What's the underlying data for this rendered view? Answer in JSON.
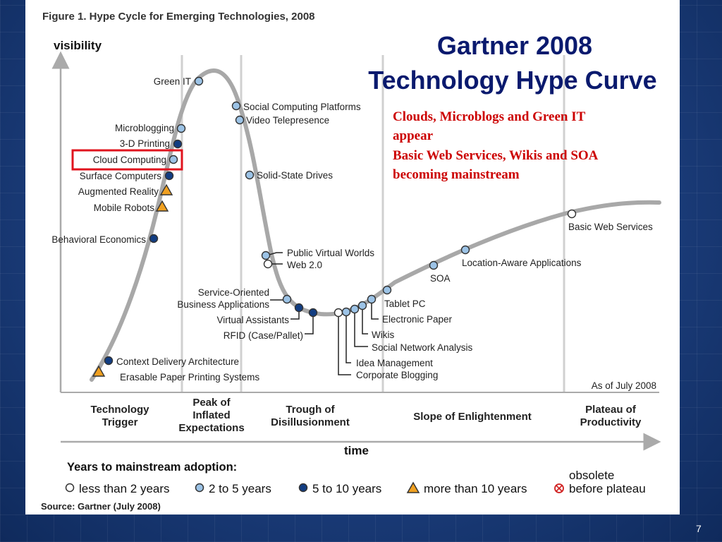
{
  "figure_title": "Figure 1. Hype Cycle for Emerging Technologies, 2008",
  "y_axis_label": "visibility",
  "x_axis_label": "time",
  "slide_heading": [
    "Gartner 2008",
    "Technology Hype Curve"
  ],
  "note_lines": [
    "Clouds, Microblogs and Green IT",
    "appear",
    "Basic Web Services, Wikis and SOA",
    "becoming mainstream"
  ],
  "as_of": "As of July 2008",
  "phases": [
    [
      "Technology",
      "Trigger"
    ],
    [
      "Peak of",
      "Inflated",
      "Expectations"
    ],
    [
      "Trough of",
      "Disillusionment"
    ],
    [
      "Slope of Enlightenment"
    ],
    [
      "Plateau of",
      "Productivity"
    ]
  ],
  "technologies": [
    {
      "label": "Green IT",
      "years": "2 to 5 years"
    },
    {
      "label": "Microblogging",
      "years": "2 to 5 years"
    },
    {
      "label": "3-D Printing",
      "years": "5 to 10 years"
    },
    {
      "label": "Cloud Computing",
      "years": "2 to 5 years",
      "highlighted": true
    },
    {
      "label": "Surface Computers",
      "years": "5 to 10 years"
    },
    {
      "label": "Augmented Reality",
      "years": "more than 10 years"
    },
    {
      "label": "Mobile Robots",
      "years": "more than 10 years"
    },
    {
      "label": "Behavioral Economics",
      "years": "5 to 10 years"
    },
    {
      "label": "Context Delivery Architecture",
      "years": "5 to 10 years"
    },
    {
      "label": "Erasable Paper Printing Systems",
      "years": "more than 10 years"
    },
    {
      "label": "Social Computing Platforms",
      "years": "2 to 5 years"
    },
    {
      "label": "Video Telepresence",
      "years": "2 to 5 years"
    },
    {
      "label": "Solid-State Drives",
      "years": "2 to 5 years"
    },
    {
      "label": "Public Virtual Worlds",
      "years": "2 to 5 years"
    },
    {
      "label": "Web 2.0",
      "years": "less than 2 years"
    },
    {
      "label": "Service-Oriented Business Applications",
      "years": "2 to 5 years"
    },
    {
      "label": "Virtual Assistants",
      "years": "5 to 10 years"
    },
    {
      "label": "RFID (Case/Pallet)",
      "years": "5 to 10 years"
    },
    {
      "label": "Corporate Blogging",
      "years": "less than 2 years"
    },
    {
      "label": "Idea Management",
      "years": "2 to 5 years"
    },
    {
      "label": "Social Network Analysis",
      "years": "2 to 5 years"
    },
    {
      "label": "Wikis",
      "years": "2 to 5 years"
    },
    {
      "label": "Electronic Paper",
      "years": "2 to 5 years"
    },
    {
      "label": "Tablet PC",
      "years": "2 to 5 years"
    },
    {
      "label": "SOA",
      "years": "2 to 5 years"
    },
    {
      "label": "Location-Aware Applications",
      "years": "2 to 5 years"
    },
    {
      "label": "Basic Web Services",
      "years": "less than 2 years"
    }
  ],
  "legend": {
    "title": "Years to mainstream adoption:",
    "items": [
      "less than 2 years",
      "2 to 5 years",
      "5 to 10 years",
      "more than 10 years"
    ],
    "obsolete": [
      "obsolete",
      "before plateau"
    ]
  },
  "source": "Source: Gartner (July 2008)",
  "page_number": "7",
  "colors": {
    "less_than_2": "#ffffff",
    "two_to_5": "#9cc3e6",
    "five_to_10": "#123d82",
    "more_than_10": "#f0a020",
    "highlight_box": "#e0141e",
    "curve": "#a8a8a8",
    "heading": "#0a1a6e",
    "note": "#cc0000"
  }
}
